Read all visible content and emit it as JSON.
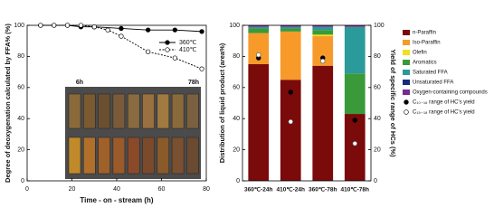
{
  "chart_data": [
    {
      "type": "line",
      "y_label": "Degree of deoxygenation calculated by FFA% (%)",
      "x_label": "Time - on - stream (h)",
      "xlim": [
        0,
        80
      ],
      "xticks": [
        0,
        20,
        40,
        60,
        80
      ],
      "ylim": [
        0,
        100
      ],
      "yticks": [
        0,
        20,
        40,
        60,
        80,
        100
      ],
      "legend": "upper right",
      "series": [
        {
          "name": "360℃",
          "color": "#000000",
          "marker": "filled",
          "dash": false,
          "x": [
            6,
            12,
            18,
            24,
            30,
            42,
            54,
            66,
            78
          ],
          "values": [
            100,
            100,
            100,
            99,
            99,
            98,
            97,
            97,
            96
          ]
        },
        {
          "name": "410℃",
          "color": "#000000",
          "marker": "open",
          "dash": true,
          "x": [
            6,
            12,
            18,
            24,
            30,
            36,
            42,
            54,
            66,
            78
          ],
          "values": [
            100,
            100,
            100,
            100,
            99,
            97,
            93,
            83,
            79,
            72
          ]
        }
      ],
      "annotations": [
        "6h",
        "78h",
        "360℃",
        "410℃"
      ]
    },
    {
      "type": "bar",
      "stacked": true,
      "y_label": "Distribution of liquid product (area%)",
      "y2_label": "Yield of specific range of HCs (%)",
      "categories": [
        "360℃-24h",
        "410℃-24h",
        "360℃-78h",
        "410℃-78h"
      ],
      "ylim": [
        0,
        100
      ],
      "yticks": [
        0,
        20,
        40,
        60,
        80,
        100
      ],
      "y2lim": [
        0,
        100
      ],
      "y2ticks": [
        0,
        20,
        40,
        60,
        80,
        100
      ],
      "series": [
        {
          "name": "n-Paraffin",
          "color": "#7b0a0a",
          "values": [
            75,
            65,
            74,
            43
          ]
        },
        {
          "name": "Iso-Paraffin",
          "color": "#f79a2a",
          "values": [
            20,
            31,
            19,
            0
          ]
        },
        {
          "name": "Olefin",
          "color": "#f2e01c",
          "values": [
            0,
            0,
            1,
            0
          ]
        },
        {
          "name": "Aromatics",
          "color": "#3a9a3a",
          "values": [
            3,
            2,
            3,
            26
          ]
        },
        {
          "name": "Saturated FFA",
          "color": "#2a9a9a",
          "values": [
            1,
            1,
            2,
            30
          ]
        },
        {
          "name": "Unsaturated FFA",
          "color": "#1a2a7a",
          "values": [
            0,
            0,
            0,
            0
          ]
        },
        {
          "name": "Oxygen-containing compounds",
          "color": "#7a2a8a",
          "values": [
            1,
            1,
            1,
            1
          ]
        },
        {
          "name": "C₁₀₋₁₆ range of HC's yield",
          "color": "#000000",
          "marker": "filled",
          "axis": "y2",
          "values": [
            79,
            57,
            79,
            39
          ]
        },
        {
          "name": "C₁₅₋₁₈ range of HC's yield",
          "color": "#000000",
          "marker": "open",
          "axis": "y2",
          "values": [
            81,
            38,
            77,
            24
          ]
        }
      ]
    }
  ]
}
